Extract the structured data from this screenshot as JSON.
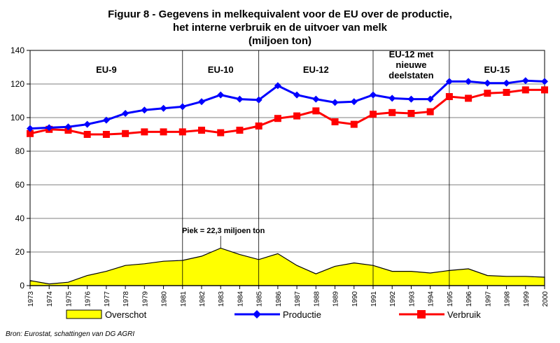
{
  "chart_data": {
    "type": "line",
    "title": [
      "Figuur 8 - Gegevens in melkequivalent voor de EU over de productie,",
      "het interne verbruik en de uitvoer van melk",
      "(miljoen ton)"
    ],
    "xlabel": "",
    "ylabel": "",
    "ylim": [
      0,
      140
    ],
    "yticks": [
      "0",
      "20",
      "40",
      "60",
      "80",
      "100",
      "120",
      "140"
    ],
    "x": [
      "1973",
      "1974",
      "1975",
      "1976",
      "1977",
      "1978",
      "1979",
      "1980",
      "1981",
      "1982",
      "1983",
      "1984",
      "1985",
      "1986",
      "1987",
      "1988",
      "1989",
      "1990",
      "1991",
      "1992",
      "1993",
      "1994",
      "1995",
      "1996",
      "1997",
      "1998",
      "1999",
      "2000"
    ],
    "series": [
      {
        "name": "Overschot",
        "type": "area",
        "color": "#ffff00",
        "values": [
          3,
          1,
          2,
          6,
          8.5,
          12,
          13,
          14.5,
          15,
          17.5,
          22.3,
          18.5,
          15.5,
          19,
          12,
          7,
          11.5,
          13.5,
          12,
          8.5,
          8.5,
          7.5,
          9,
          10,
          6,
          5.5,
          5.5,
          5
        ]
      },
      {
        "name": "Productie",
        "type": "line",
        "color": "#0000ff",
        "marker": "diamond",
        "values": [
          93.5,
          94,
          94.5,
          96,
          98.5,
          102.5,
          104.5,
          105.5,
          106.5,
          109.5,
          113.5,
          111,
          110.5,
          119,
          113.5,
          111,
          109,
          109.5,
          113.5,
          111.5,
          111,
          111,
          121.5,
          121.5,
          120.5,
          120.5,
          122,
          121.5
        ]
      },
      {
        "name": "Verbruik",
        "type": "line",
        "color": "#ff0000",
        "marker": "square",
        "values": [
          90.5,
          93,
          92.5,
          90,
          90,
          90.5,
          91.5,
          91.5,
          91.5,
          92.5,
          91,
          92.5,
          95,
          99.5,
          101,
          104,
          97.5,
          96,
          102,
          103,
          102.5,
          103.5,
          112.5,
          111.5,
          114.5,
          115,
          116.5,
          116.5
        ]
      }
    ],
    "periods": [
      {
        "label": [
          "EU-9"
        ],
        "from": "1973",
        "to": "1981"
      },
      {
        "label": [
          "EU-10"
        ],
        "from": "1981",
        "to": "1985"
      },
      {
        "label": [
          "EU-12"
        ],
        "from": "1985",
        "to": "1991"
      },
      {
        "label": [
          "EU-12 met",
          "nieuwe",
          "deelstaten"
        ],
        "from": "1991",
        "to": "1995"
      },
      {
        "label": [
          "EU-15"
        ],
        "from": "1995",
        "to": "2000"
      }
    ],
    "annotation": {
      "text": "Piek = 22,3 miljoen ton",
      "x": "1983",
      "y": 22.3
    },
    "grid": {
      "horizontal": true,
      "vertical": false
    },
    "legend_position": "bottom",
    "source": "Bron: Eurostat, schattingen van DG AGRI"
  }
}
